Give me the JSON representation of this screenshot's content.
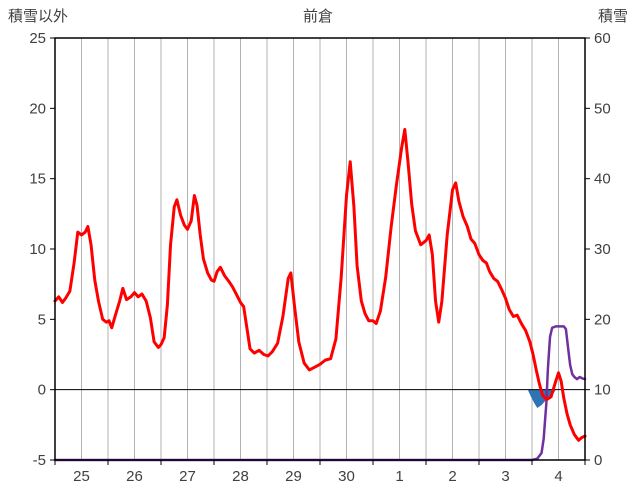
{
  "chart_data": {
    "type": "line",
    "title": "前倉",
    "left_axis": {
      "label": "積雪以外",
      "min": -5,
      "max": 25,
      "ticks": [
        25,
        20,
        15,
        10,
        5,
        0,
        -5
      ]
    },
    "right_axis": {
      "label": "積雪",
      "min": 0,
      "max": 60,
      "ticks": [
        60,
        50,
        40,
        30,
        20,
        10,
        0
      ]
    },
    "x_axis": {
      "labels": [
        "25",
        "26",
        "27",
        "28",
        "29",
        "30",
        "1",
        "2",
        "3",
        "4"
      ],
      "min": 0,
      "max": 10,
      "gridline_step": 0.5
    },
    "grid": {
      "vertical": true,
      "horizontal": false,
      "color": "#b3b3b3"
    },
    "zero_line": {
      "value": 0,
      "color": "#000000"
    },
    "series": [
      {
        "name": "purple-line",
        "color": "#7030A0",
        "axis": "right",
        "width": 2.5,
        "points": [
          [
            0,
            0
          ],
          [
            9.0,
            0
          ],
          [
            9.1,
            0.2
          ],
          [
            9.18,
            1
          ],
          [
            9.22,
            3
          ],
          [
            9.27,
            8
          ],
          [
            9.3,
            13
          ],
          [
            9.34,
            17.5
          ],
          [
            9.38,
            18.8
          ],
          [
            9.45,
            19
          ],
          [
            9.6,
            19
          ],
          [
            9.64,
            18.6
          ],
          [
            9.68,
            16
          ],
          [
            9.72,
            13.5
          ],
          [
            9.76,
            12.2
          ],
          [
            9.8,
            11.8
          ],
          [
            9.85,
            11.5
          ],
          [
            9.9,
            11.8
          ],
          [
            9.95,
            11.6
          ],
          [
            10,
            11.5
          ]
        ]
      },
      {
        "name": "red-line",
        "color": "#FF0000",
        "axis": "left",
        "width": 3,
        "points": [
          [
            0,
            6.3
          ],
          [
            0.07,
            6.6
          ],
          [
            0.14,
            6.2
          ],
          [
            0.2,
            6.5
          ],
          [
            0.28,
            7.0
          ],
          [
            0.36,
            9.0
          ],
          [
            0.43,
            11.2
          ],
          [
            0.5,
            11.0
          ],
          [
            0.57,
            11.2
          ],
          [
            0.62,
            11.6
          ],
          [
            0.68,
            10.3
          ],
          [
            0.75,
            7.8
          ],
          [
            0.82,
            6.3
          ],
          [
            0.9,
            5.0
          ],
          [
            0.97,
            4.8
          ],
          [
            1.02,
            4.9
          ],
          [
            1.07,
            4.4
          ],
          [
            1.14,
            5.3
          ],
          [
            1.22,
            6.3
          ],
          [
            1.28,
            7.2
          ],
          [
            1.35,
            6.4
          ],
          [
            1.43,
            6.6
          ],
          [
            1.5,
            6.9
          ],
          [
            1.57,
            6.6
          ],
          [
            1.64,
            6.8
          ],
          [
            1.72,
            6.3
          ],
          [
            1.8,
            5.1
          ],
          [
            1.87,
            3.4
          ],
          [
            1.95,
            3.0
          ],
          [
            2.0,
            3.2
          ],
          [
            2.06,
            3.7
          ],
          [
            2.12,
            6.0
          ],
          [
            2.18,
            10.3
          ],
          [
            2.25,
            13.0
          ],
          [
            2.3,
            13.5
          ],
          [
            2.37,
            12.4
          ],
          [
            2.44,
            11.7
          ],
          [
            2.5,
            11.4
          ],
          [
            2.57,
            12.0
          ],
          [
            2.63,
            13.8
          ],
          [
            2.68,
            13.1
          ],
          [
            2.74,
            11.0
          ],
          [
            2.8,
            9.3
          ],
          [
            2.88,
            8.3
          ],
          [
            2.95,
            7.8
          ],
          [
            3.0,
            7.7
          ],
          [
            3.06,
            8.4
          ],
          [
            3.12,
            8.7
          ],
          [
            3.2,
            8.1
          ],
          [
            3.28,
            7.7
          ],
          [
            3.35,
            7.3
          ],
          [
            3.42,
            6.8
          ],
          [
            3.5,
            6.2
          ],
          [
            3.56,
            5.9
          ],
          [
            3.62,
            4.4
          ],
          [
            3.68,
            2.9
          ],
          [
            3.76,
            2.6
          ],
          [
            3.85,
            2.8
          ],
          [
            3.94,
            2.5
          ],
          [
            4.02,
            2.4
          ],
          [
            4.1,
            2.7
          ],
          [
            4.2,
            3.3
          ],
          [
            4.3,
            5.2
          ],
          [
            4.4,
            7.9
          ],
          [
            4.45,
            8.3
          ],
          [
            4.52,
            5.9
          ],
          [
            4.6,
            3.4
          ],
          [
            4.7,
            1.9
          ],
          [
            4.8,
            1.4
          ],
          [
            4.9,
            1.6
          ],
          [
            5.0,
            1.8
          ],
          [
            5.1,
            2.1
          ],
          [
            5.2,
            2.2
          ],
          [
            5.3,
            3.6
          ],
          [
            5.4,
            8.0
          ],
          [
            5.5,
            13.8
          ],
          [
            5.57,
            16.2
          ],
          [
            5.64,
            13.0
          ],
          [
            5.7,
            8.8
          ],
          [
            5.78,
            6.3
          ],
          [
            5.85,
            5.4
          ],
          [
            5.92,
            4.9
          ],
          [
            6.0,
            4.9
          ],
          [
            6.06,
            4.7
          ],
          [
            6.14,
            5.6
          ],
          [
            6.24,
            8.0
          ],
          [
            6.34,
            11.5
          ],
          [
            6.44,
            14.5
          ],
          [
            6.54,
            17.2
          ],
          [
            6.6,
            18.5
          ],
          [
            6.66,
            16.2
          ],
          [
            6.73,
            13.2
          ],
          [
            6.8,
            11.3
          ],
          [
            6.9,
            10.3
          ],
          [
            7.0,
            10.6
          ],
          [
            7.06,
            11.0
          ],
          [
            7.12,
            9.6
          ],
          [
            7.18,
            6.3
          ],
          [
            7.24,
            4.8
          ],
          [
            7.3,
            6.3
          ],
          [
            7.4,
            11.0
          ],
          [
            7.5,
            14.2
          ],
          [
            7.56,
            14.7
          ],
          [
            7.62,
            13.4
          ],
          [
            7.7,
            12.3
          ],
          [
            7.78,
            11.6
          ],
          [
            7.85,
            10.7
          ],
          [
            7.92,
            10.4
          ],
          [
            8.0,
            9.6
          ],
          [
            8.07,
            9.2
          ],
          [
            8.14,
            9.0
          ],
          [
            8.2,
            8.4
          ],
          [
            8.28,
            7.9
          ],
          [
            8.35,
            7.7
          ],
          [
            8.43,
            7.1
          ],
          [
            8.5,
            6.5
          ],
          [
            8.57,
            5.7
          ],
          [
            8.65,
            5.2
          ],
          [
            8.72,
            5.3
          ],
          [
            8.8,
            4.7
          ],
          [
            8.88,
            4.2
          ],
          [
            8.96,
            3.4
          ],
          [
            9.02,
            2.5
          ],
          [
            9.08,
            1.4
          ],
          [
            9.14,
            0.4
          ],
          [
            9.2,
            -0.4
          ],
          [
            9.28,
            -0.7
          ],
          [
            9.36,
            -0.5
          ],
          [
            9.44,
            0.5
          ],
          [
            9.5,
            1.2
          ],
          [
            9.55,
            0.6
          ],
          [
            9.6,
            -0.6
          ],
          [
            9.66,
            -1.7
          ],
          [
            9.72,
            -2.5
          ],
          [
            9.8,
            -3.2
          ],
          [
            9.88,
            -3.6
          ],
          [
            9.94,
            -3.4
          ],
          [
            10,
            -3.3
          ]
        ]
      }
    ],
    "area_series": {
      "name": "blue-area",
      "color": "#2E74B5",
      "axis": "left",
      "baseline": 0,
      "points": [
        [
          8.92,
          0
        ],
        [
          8.98,
          -0.5
        ],
        [
          9.05,
          -1.0
        ],
        [
          9.1,
          -1.3
        ],
        [
          9.18,
          -1.1
        ],
        [
          9.25,
          -0.8
        ],
        [
          9.32,
          -0.6
        ],
        [
          9.4,
          -0.3
        ],
        [
          9.45,
          0
        ]
      ]
    }
  }
}
